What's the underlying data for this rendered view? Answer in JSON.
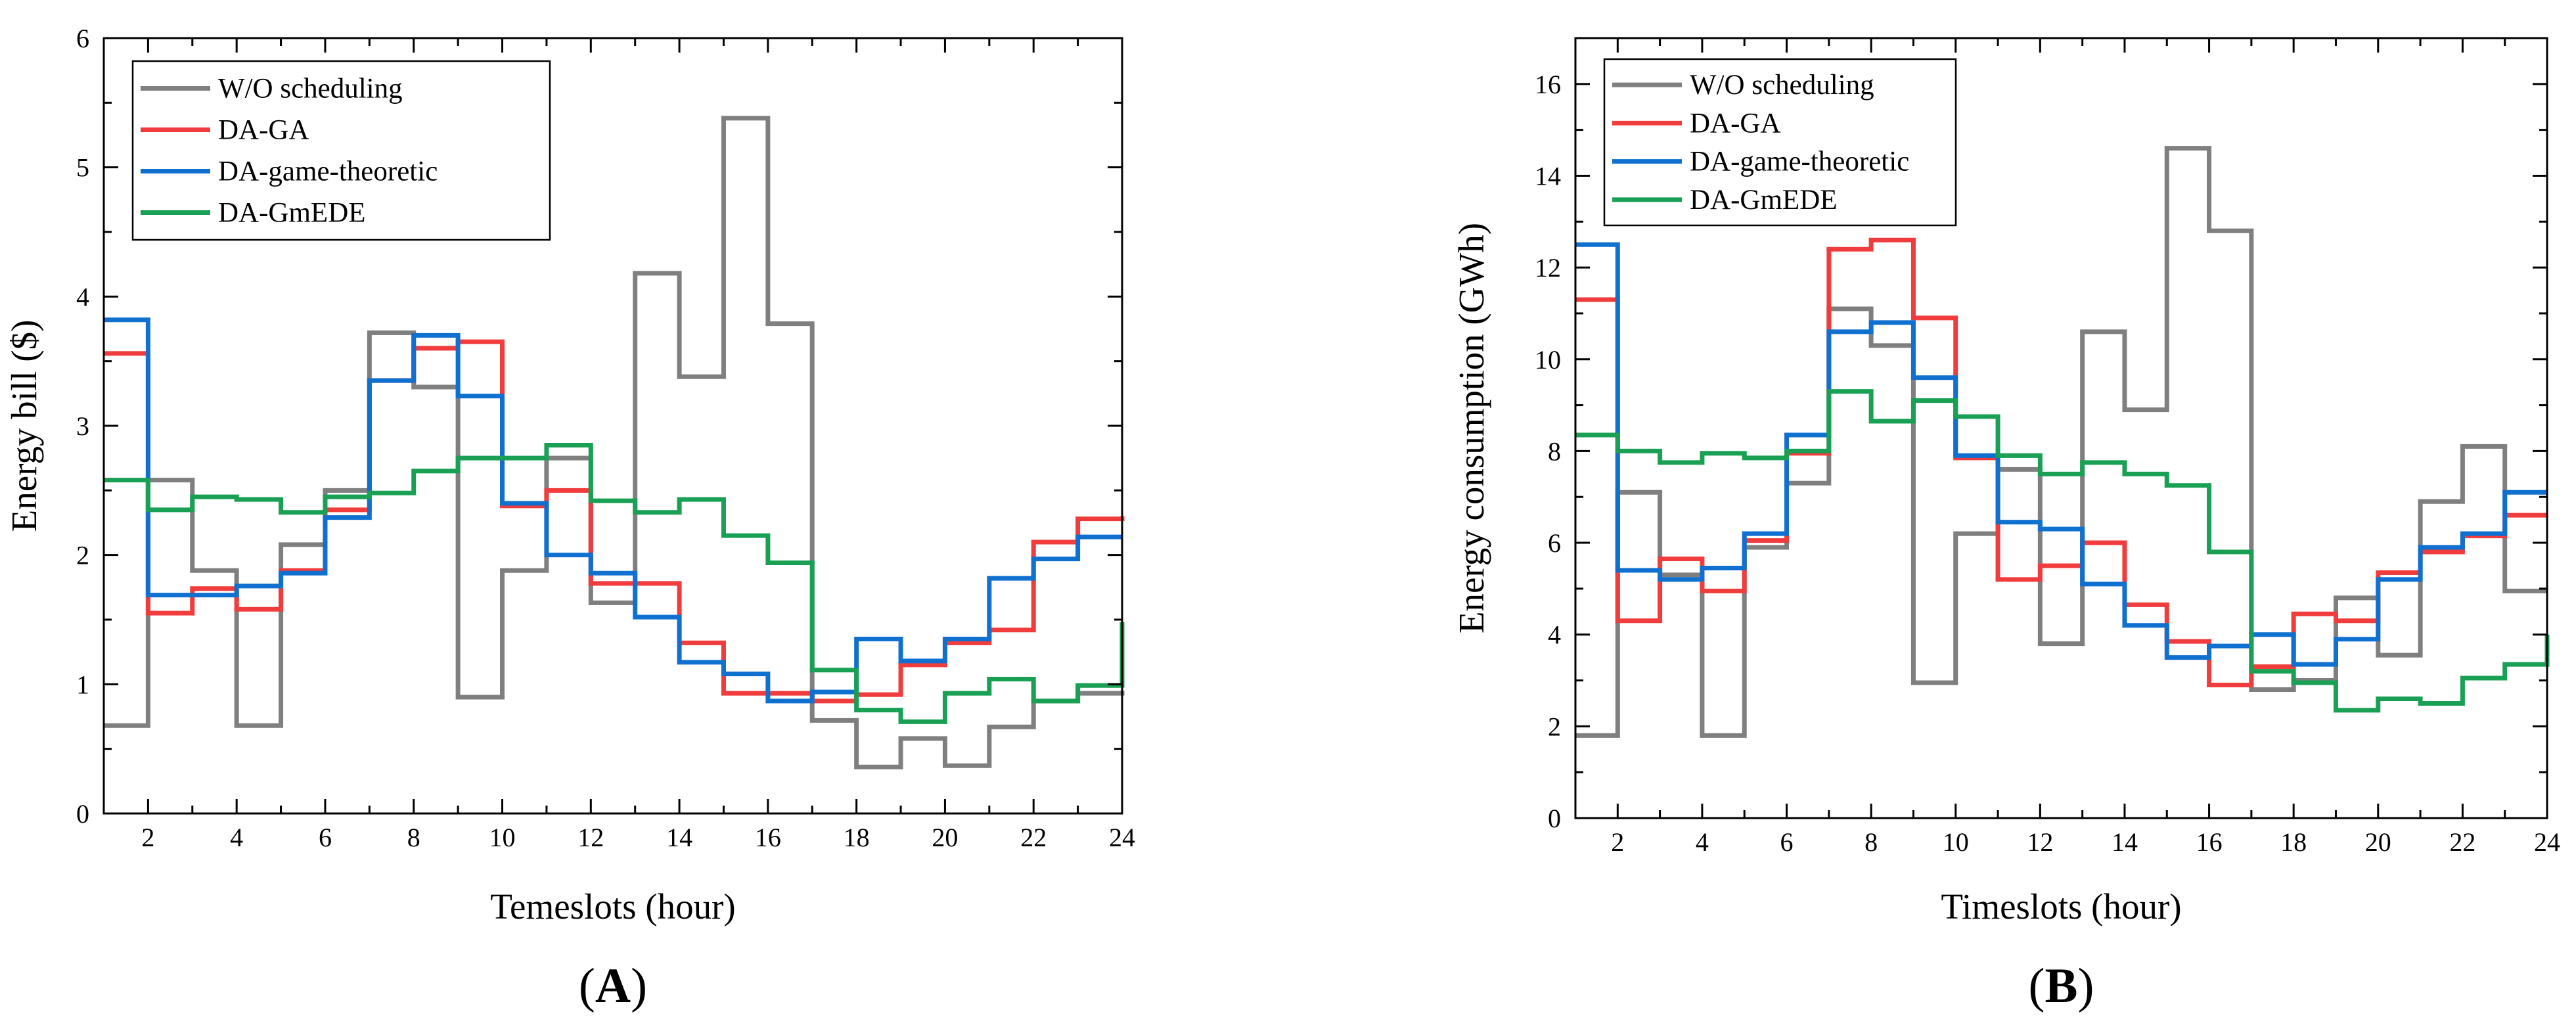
{
  "chart_data": [
    {
      "type": "line",
      "step": true,
      "panel_label": "A",
      "xlabel": "Temeslots (hour)",
      "ylabel": "Energy bill ($)",
      "xlim": [
        1,
        24
      ],
      "ylim": [
        0,
        6
      ],
      "xticks": [
        2,
        4,
        6,
        8,
        10,
        12,
        14,
        16,
        18,
        20,
        22,
        24
      ],
      "yticks": [
        0,
        1,
        2,
        3,
        4,
        5,
        6
      ],
      "legend_position": "top-left",
      "x": [
        1,
        2,
        3,
        4,
        5,
        6,
        7,
        8,
        9,
        10,
        11,
        12,
        13,
        14,
        15,
        16,
        17,
        18,
        19,
        20,
        21,
        22,
        23,
        24
      ],
      "series": [
        {
          "name": "W/O scheduling",
          "color": "#7f7f7f",
          "values": [
            0.68,
            2.58,
            1.88,
            0.68,
            2.08,
            2.5,
            3.72,
            3.3,
            0.9,
            1.88,
            2.75,
            1.63,
            4.18,
            3.38,
            5.38,
            3.79,
            0.72,
            0.36,
            0.58,
            0.37,
            0.67,
            0.87,
            0.93,
            0.95
          ]
        },
        {
          "name": "DA-GA",
          "color": "#f03c3c",
          "values": [
            3.56,
            1.55,
            1.74,
            1.58,
            1.88,
            2.35,
            3.35,
            3.6,
            3.65,
            2.38,
            2.5,
            1.78,
            1.78,
            1.32,
            0.93,
            0.93,
            0.87,
            0.92,
            1.15,
            1.32,
            1.42,
            2.1,
            2.28,
            2.3
          ]
        },
        {
          "name": "DA-game-theoretic",
          "color": "#1070d0",
          "values": [
            3.82,
            1.69,
            1.69,
            1.76,
            1.86,
            2.29,
            3.35,
            3.7,
            3.23,
            2.4,
            2.0,
            1.86,
            1.52,
            1.17,
            1.08,
            0.87,
            0.94,
            1.35,
            1.18,
            1.35,
            1.82,
            1.97,
            2.14,
            2.14
          ]
        },
        {
          "name": "DA-GmEDE",
          "color": "#1aa055",
          "values": [
            2.58,
            2.35,
            2.45,
            2.43,
            2.33,
            2.45,
            2.48,
            2.65,
            2.75,
            2.75,
            2.85,
            2.42,
            2.33,
            2.43,
            2.15,
            1.94,
            1.11,
            0.8,
            0.71,
            0.93,
            1.04,
            0.87,
            0.99,
            1.48
          ]
        }
      ]
    },
    {
      "type": "line",
      "step": true,
      "panel_label": "B",
      "xlabel": "Timeslots (hour)",
      "ylabel": "Energy consumption (GWh)",
      "xlim": [
        1,
        24
      ],
      "ylim": [
        0,
        17
      ],
      "xticks": [
        2,
        4,
        6,
        8,
        10,
        12,
        14,
        16,
        18,
        20,
        22,
        24
      ],
      "yticks": [
        0,
        2,
        4,
        6,
        8,
        10,
        12,
        14,
        16
      ],
      "legend_position": "top-left",
      "x": [
        1,
        2,
        3,
        4,
        5,
        6,
        7,
        8,
        9,
        10,
        11,
        12,
        13,
        14,
        15,
        16,
        17,
        18,
        19,
        20,
        21,
        22,
        23,
        24
      ],
      "series": [
        {
          "name": "W/O scheduling",
          "color": "#7f7f7f",
          "values": [
            1.8,
            7.1,
            5.3,
            1.8,
            5.9,
            7.3,
            11.1,
            10.3,
            2.95,
            6.2,
            7.6,
            3.8,
            10.6,
            8.9,
            14.6,
            12.8,
            2.8,
            3.0,
            4.8,
            3.55,
            6.9,
            8.1,
            4.95,
            4.95
          ]
        },
        {
          "name": "DA-GA",
          "color": "#f03c3c",
          "values": [
            11.3,
            4.3,
            5.65,
            4.95,
            6.05,
            7.95,
            12.4,
            12.6,
            10.9,
            7.85,
            5.2,
            5.5,
            6.0,
            4.65,
            3.85,
            2.9,
            3.3,
            4.45,
            4.3,
            5.35,
            5.8,
            6.15,
            6.6,
            6.6
          ]
        },
        {
          "name": "DA-game-theoretic",
          "color": "#1070d0",
          "values": [
            12.5,
            5.4,
            5.2,
            5.45,
            6.2,
            8.35,
            10.6,
            10.8,
            9.6,
            7.9,
            6.45,
            6.3,
            5.1,
            4.2,
            3.5,
            3.75,
            4.0,
            3.35,
            3.9,
            5.2,
            5.9,
            6.2,
            7.1,
            7.1
          ]
        },
        {
          "name": "DA-GmEDE",
          "color": "#1aa055",
          "values": [
            8.35,
            8.0,
            7.75,
            7.95,
            7.85,
            8.0,
            9.3,
            8.65,
            9.1,
            8.75,
            7.9,
            7.5,
            7.75,
            7.5,
            7.25,
            5.8,
            3.2,
            2.95,
            2.35,
            2.6,
            2.5,
            3.05,
            3.35,
            4.0
          ]
        }
      ]
    }
  ]
}
